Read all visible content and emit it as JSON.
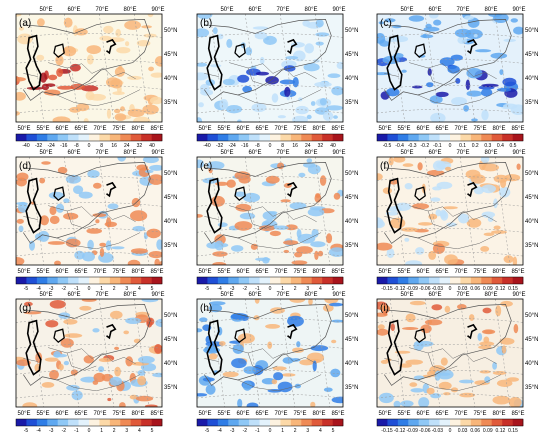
{
  "chart_data": {
    "type": "heatmap",
    "layout": "3x3 grid of gridded maps over Central Asia",
    "top_lon_ticks": [
      "50°E",
      "60°E",
      "70°E",
      "80°E",
      "90°E"
    ],
    "bottom_lon_ticks": [
      "50°E",
      "55°E",
      "60°E",
      "65°E",
      "70°E",
      "75°E",
      "80°E",
      "85°E"
    ],
    "lat_ticks": [
      "50°N",
      "45°N",
      "40°N",
      "35°N"
    ],
    "colormap": [
      "#1a1aa8",
      "#1f4fd6",
      "#2f7de6",
      "#5fa8f0",
      "#8fc8f6",
      "#bfe0fa",
      "#e3f2fc",
      "#fdf2e0",
      "#fcd9a8",
      "#f8b67a",
      "#ef8a55",
      "#e05a3a",
      "#c83028",
      "#a8141c"
    ],
    "panels": [
      {
        "label": "(a)",
        "colorbar_ticks": [
          "-40",
          "-32",
          "-24",
          "-16",
          "-8",
          "0",
          "8",
          "16",
          "24",
          "32",
          "40"
        ],
        "background": "#fbf7e6",
        "pattern": "warm"
      },
      {
        "label": "(b)",
        "colorbar_ticks": [
          "-40",
          "-32",
          "-24",
          "-16",
          "-8",
          "0",
          "8",
          "16",
          "24",
          "32",
          "40"
        ],
        "background": "#eef7fa",
        "pattern": "cool"
      },
      {
        "label": "(c)",
        "colorbar_ticks": [
          "-0.5",
          "-0.4",
          "-0.3",
          "-0.2",
          "-0.1",
          "0",
          "0.1",
          "0.2",
          "0.3",
          "0.4",
          "0.5"
        ],
        "background": "#e4f1fb",
        "pattern": "cool-strong"
      },
      {
        "label": "(d)",
        "colorbar_ticks": [
          "-5",
          "-4",
          "-3",
          "-2",
          "-1",
          "0",
          "1",
          "2",
          "3",
          "4",
          "5"
        ],
        "background": "#fbf5ea",
        "pattern": "mixed"
      },
      {
        "label": "(e)",
        "colorbar_ticks": [
          "-5",
          "-4",
          "-3",
          "-2",
          "-1",
          "0",
          "1",
          "2",
          "3",
          "4",
          "5"
        ],
        "background": "#f6f6ee",
        "pattern": "mixed"
      },
      {
        "label": "(f)",
        "colorbar_ticks": [
          "-0.15",
          "-0.12",
          "-0.09",
          "-0.06",
          "-0.03",
          "0",
          "0.03",
          "0.06",
          "0.09",
          "0.12",
          "0.15"
        ],
        "background": "#fbf3e6",
        "pattern": "warm-soft"
      },
      {
        "label": "(g)",
        "colorbar_ticks": [
          "-5",
          "-4",
          "-3",
          "-2",
          "-1",
          "0",
          "1",
          "2",
          "3",
          "4",
          "5"
        ],
        "background": "#f7f2e8",
        "pattern": "mixed-warm"
      },
      {
        "label": "(h)",
        "colorbar_ticks": [
          "-5",
          "-4",
          "-3",
          "-2",
          "-1",
          "0",
          "1",
          "2",
          "3",
          "4",
          "5"
        ],
        "background": "#eef5f5",
        "pattern": "mixed-cool"
      },
      {
        "label": "(i)",
        "colorbar_ticks": [
          "-0.15",
          "-0.12",
          "-0.09",
          "-0.06",
          "-0.03",
          "0",
          "0.03",
          "0.06",
          "0.09",
          "0.12",
          "0.15"
        ],
        "background": "#f7efe2",
        "pattern": "warm-north"
      }
    ]
  }
}
